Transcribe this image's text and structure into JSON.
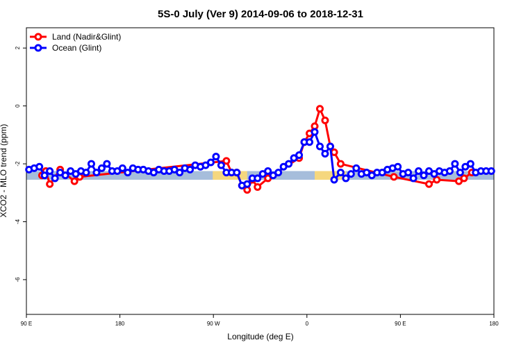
{
  "chart_data": {
    "type": "line",
    "title": "5S-0 July (Ver 9)   2014-09-06 to 2018-12-31",
    "xlabel": "Longitude (deg E)",
    "ylabel": "XCO2 - MLO trend (ppm)",
    "xlim": [
      90,
      450
    ],
    "ylim": [
      -7.2,
      2.7
    ],
    "x_ticks": [
      {
        "value": 90,
        "label": "90 E"
      },
      {
        "value": 162,
        "label": "180"
      },
      {
        "value": 234,
        "label": "90 W"
      },
      {
        "value": 306,
        "label": "0"
      },
      {
        "value": 378,
        "label": "90 E"
      },
      {
        "value": 450,
        "label": "180"
      }
    ],
    "y_ticks": [
      {
        "value": 2,
        "label": "2"
      },
      {
        "value": 0,
        "label": "0"
      },
      {
        "value": -2,
        "label": "-2"
      },
      {
        "value": -4,
        "label": "-4"
      },
      {
        "value": -6,
        "label": "-6"
      }
    ],
    "band": {
      "y0": -2.25,
      "y1": -2.55,
      "color": "#a6bddb",
      "highlight_color": "#f5d77e",
      "highlights": [
        [
          233.5,
          260
        ],
        [
          312,
          336
        ]
      ]
    },
    "legend": {
      "placement": "top-left"
    },
    "series": [
      {
        "name": "Land (Nadir&Glint)",
        "color": "#ff0000",
        "x": [
          102,
          105,
          108,
          116,
          127,
          131,
          244,
          248,
          252,
          256,
          260,
          264,
          268,
          276,
          300,
          304,
          308,
          312,
          316,
          320,
          324,
          327,
          332,
          373,
          400,
          406,
          423,
          427,
          433
        ],
        "y": [
          -2.4,
          -2.25,
          -2.7,
          -2.2,
          -2.6,
          -2.45,
          -1.9,
          -2.3,
          -2.3,
          -2.75,
          -2.9,
          -2.55,
          -2.8,
          -2.5,
          -1.8,
          -1.25,
          -0.95,
          -0.7,
          -0.1,
          -0.5,
          -1.4,
          -1.6,
          -2.0,
          -2.45,
          -2.7,
          -2.55,
          -2.6,
          -2.5,
          -2.3
        ]
      },
      {
        "name": "Ocean (Glint)",
        "color": "#0000ff",
        "x": [
          92,
          96,
          100,
          104,
          108,
          112,
          116,
          120,
          124,
          128,
          132,
          136,
          140,
          144,
          148,
          152,
          156,
          160,
          164,
          168,
          172,
          176,
          180,
          184,
          188,
          192,
          196,
          200,
          204,
          208,
          212,
          216,
          220,
          224,
          228,
          232,
          236,
          240,
          244,
          248,
          252,
          256,
          260,
          264,
          268,
          272,
          276,
          280,
          284,
          288,
          292,
          296,
          300,
          304,
          308,
          312,
          316,
          320,
          324,
          327,
          332,
          336,
          340,
          344,
          348,
          352,
          356,
          360,
          364,
          368,
          372,
          376,
          380,
          384,
          388,
          392,
          396,
          400,
          404,
          408,
          412,
          416,
          420,
          424,
          428,
          432,
          436,
          440,
          444,
          448
        ],
        "y": [
          -2.2,
          -2.15,
          -2.1,
          -2.4,
          -2.25,
          -2.5,
          -2.3,
          -2.4,
          -2.25,
          -2.35,
          -2.25,
          -2.3,
          -2.0,
          -2.3,
          -2.15,
          -2.0,
          -2.25,
          -2.25,
          -2.15,
          -2.3,
          -2.15,
          -2.2,
          -2.2,
          -2.25,
          -2.3,
          -2.2,
          -2.25,
          -2.25,
          -2.2,
          -2.3,
          -2.15,
          -2.2,
          -2.05,
          -2.1,
          -2.05,
          -1.95,
          -1.75,
          -2.05,
          -2.3,
          -2.3,
          -2.3,
          -2.75,
          -2.7,
          -2.5,
          -2.5,
          -2.35,
          -2.25,
          -2.4,
          -2.3,
          -2.1,
          -2.0,
          -1.8,
          -1.7,
          -1.25,
          -1.25,
          -0.9,
          -1.4,
          -1.65,
          -1.4,
          -2.55,
          -2.3,
          -2.5,
          -2.35,
          -2.15,
          -2.35,
          -2.3,
          -2.4,
          -2.3,
          -2.3,
          -2.2,
          -2.15,
          -2.1,
          -2.35,
          -2.3,
          -2.5,
          -2.25,
          -2.4,
          -2.25,
          -2.35,
          -2.25,
          -2.3,
          -2.25,
          -2.0,
          -2.3,
          -2.1,
          -2.0,
          -2.3,
          -2.25,
          -2.25,
          -2.25
        ]
      }
    ]
  }
}
